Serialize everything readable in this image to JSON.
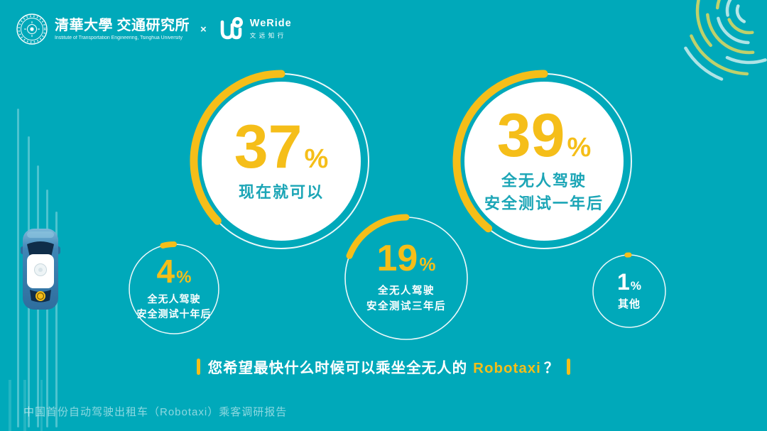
{
  "colors": {
    "background": "#00a9ba",
    "accent_yellow": "#f5be19",
    "circle_fill": "#ffffff",
    "teal_label_text": "#1ba5b6",
    "corner_arc_cyan": "#aee3e5",
    "corner_arc_olive": "#bfd16b"
  },
  "header": {
    "tsinghua_seal_icon": "tsinghua-university-seal",
    "tsinghua_cn": "清華大學 交通研究所",
    "tsinghua_en": "Institute of Transportation Engineering, Tsinghua University",
    "separator": "×",
    "weride_mark_icon": "weride-logo",
    "weride_en": "WeRide",
    "weride_cn": "文远知行"
  },
  "chart_data": {
    "type": "pie",
    "variant": "percentage-donut-bubbles",
    "title": "您希望最快什么时候可以乘坐全无人的 Robotaxi？",
    "unit": "%",
    "legend_position": "inside-circles",
    "items": [
      {
        "id": "now",
        "value": 37,
        "value_str": "37",
        "unit": "%",
        "label": "现在就可以"
      },
      {
        "id": "after-1-year-tests",
        "value": 39,
        "value_str": "39",
        "unit": "%",
        "label": "全无人驾驶\n安全测试一年后"
      },
      {
        "id": "after-10-year-tests",
        "value": 4,
        "value_str": "4",
        "unit": "%",
        "label": "全无人驾驶\n安全测试十年后"
      },
      {
        "id": "after-3-year-tests",
        "value": 19,
        "value_str": "19",
        "unit": "%",
        "label": "全无人驾驶\n安全测试三年后"
      },
      {
        "id": "other",
        "value": 1,
        "value_str": "1",
        "unit": "%",
        "label": "其他"
      }
    ]
  },
  "caption": {
    "prefix": "您希望最快什么时候可以乘坐全无人的",
    "highlight": "Robotaxi",
    "suffix": "？"
  },
  "footer": {
    "text": "中国首份自动驾驶出租车（Robotaxi）乘客调研报告"
  },
  "decorations": {
    "car_icon": "robotaxi-top-view",
    "left_speed_lines": 5,
    "corner_decoration": "concentric-dashed-arcs"
  }
}
